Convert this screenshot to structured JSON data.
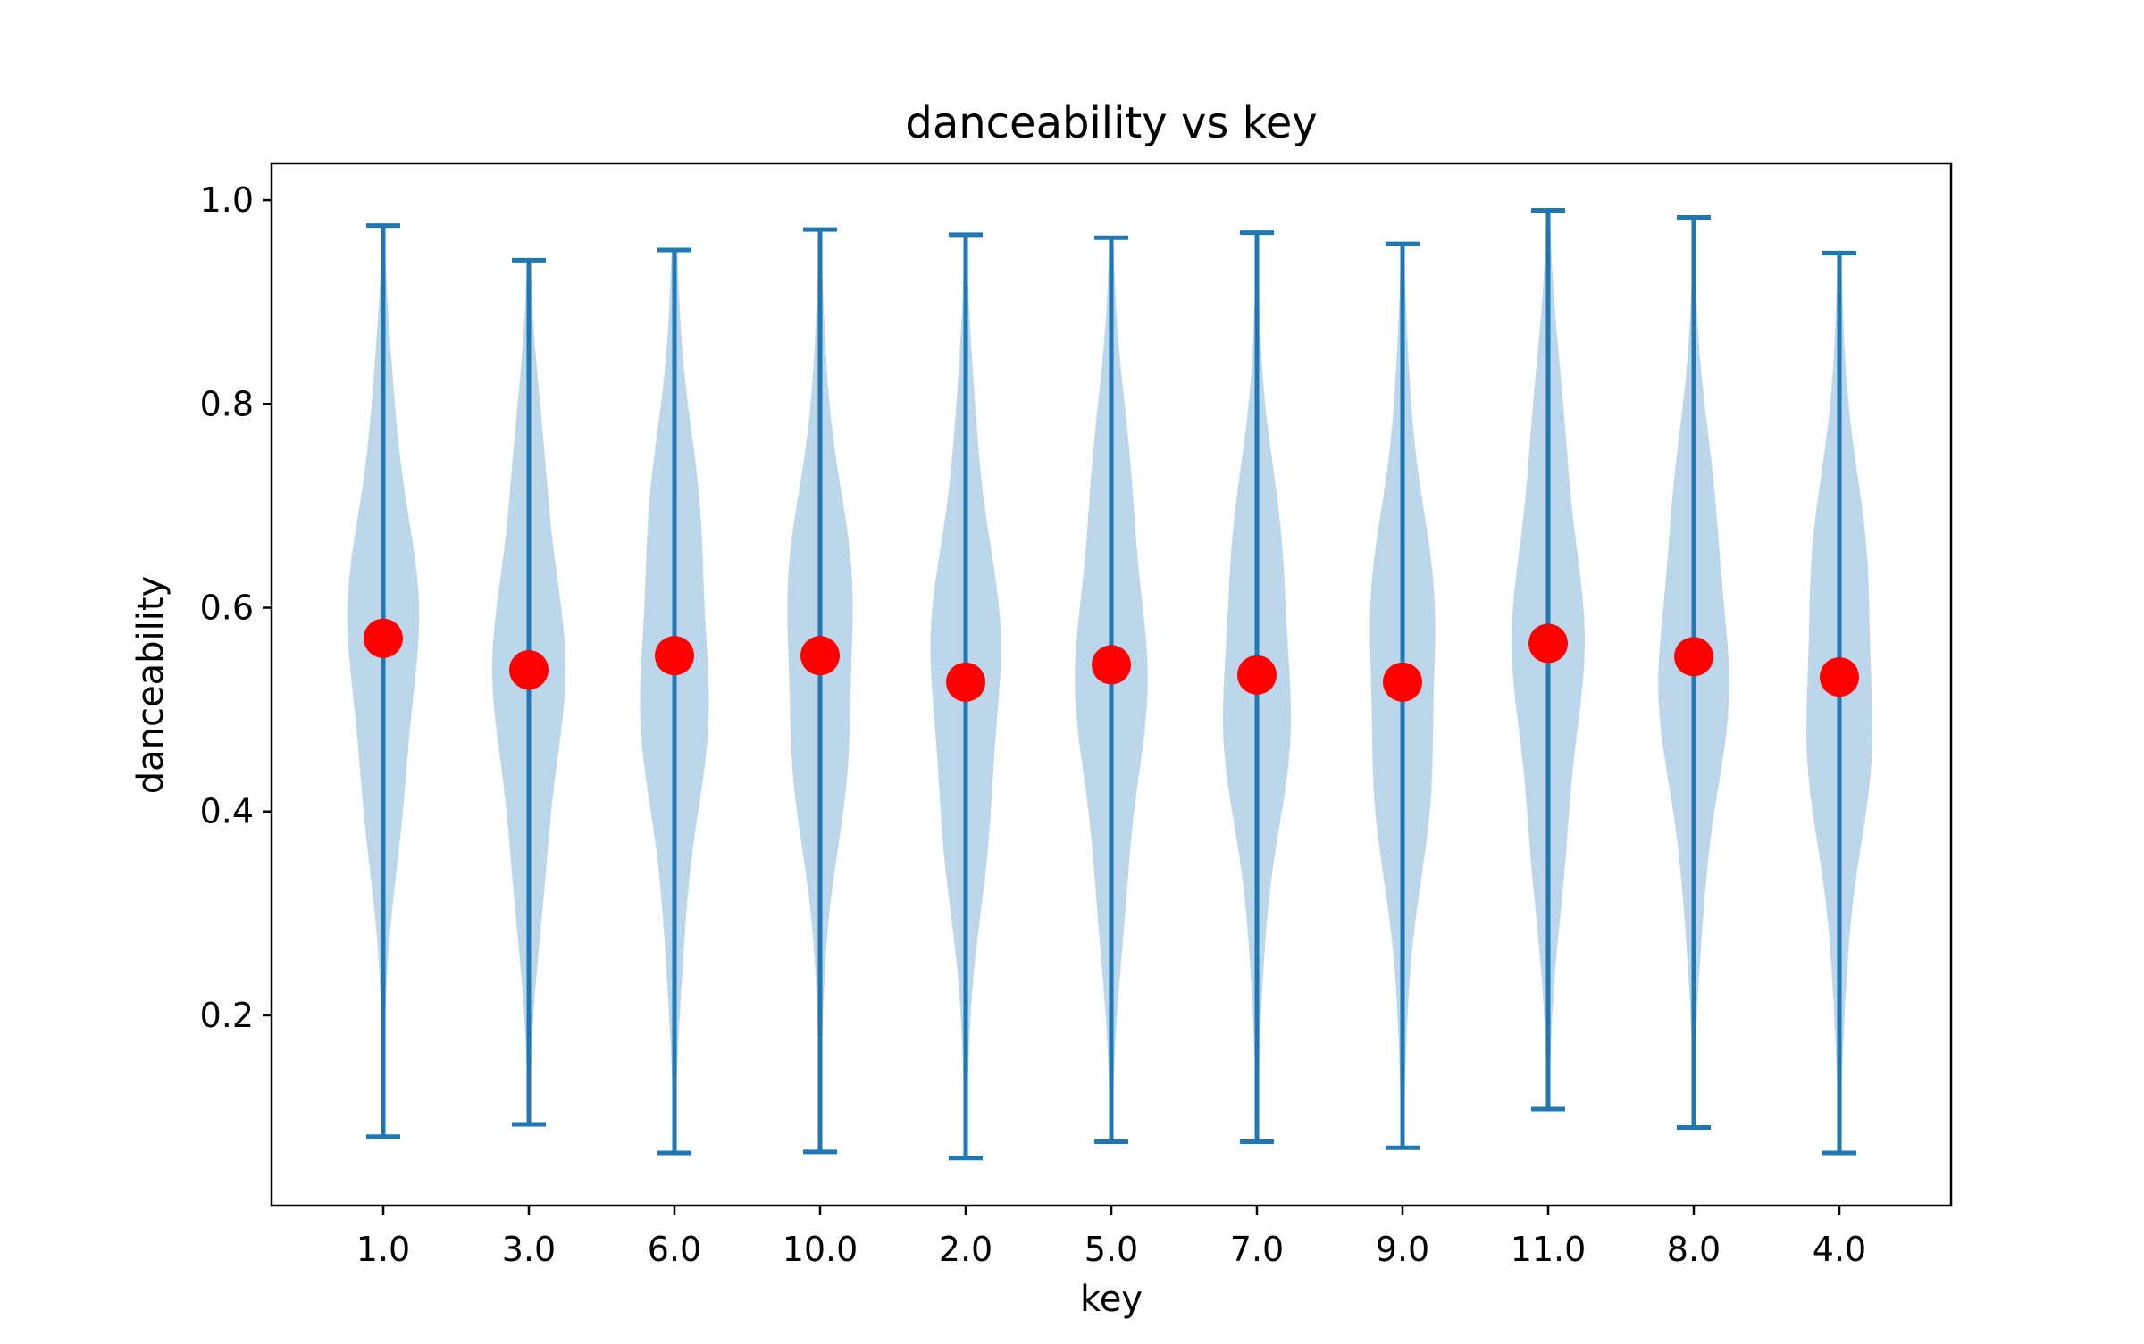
{
  "chart_data": {
    "type": "violin",
    "title": "danceability vs key",
    "xlabel": "key",
    "ylabel": "danceability",
    "ylim": [
      0.0133,
      1.036
    ],
    "yticks": [
      "0.2",
      "0.4",
      "0.6",
      "0.8",
      "1.0"
    ],
    "grid": false,
    "categories": [
      "1.0",
      "3.0",
      "6.0",
      "10.0",
      "2.0",
      "5.0",
      "7.0",
      "9.0",
      "11.0",
      "8.0",
      "4.0"
    ],
    "series": [
      {
        "min": 0.081,
        "max": 0.975,
        "mean": 0.57
      },
      {
        "min": 0.093,
        "max": 0.941,
        "mean": 0.539
      },
      {
        "min": 0.065,
        "max": 0.951,
        "mean": 0.553
      },
      {
        "min": 0.066,
        "max": 0.971,
        "mean": 0.553
      },
      {
        "min": 0.06,
        "max": 0.966,
        "mean": 0.527
      },
      {
        "min": 0.076,
        "max": 0.963,
        "mean": 0.544
      },
      {
        "min": 0.076,
        "max": 0.968,
        "mean": 0.534
      },
      {
        "min": 0.07,
        "max": 0.957,
        "mean": 0.527
      },
      {
        "min": 0.108,
        "max": 0.99,
        "mean": 0.565
      },
      {
        "min": 0.09,
        "max": 0.983,
        "mean": 0.552
      },
      {
        "min": 0.065,
        "max": 0.948,
        "mean": 0.532
      }
    ],
    "colors": {
      "violin_fill": "#bcd6ea",
      "extrema": "#1f77b4",
      "mean_marker": "#ff0000"
    }
  }
}
